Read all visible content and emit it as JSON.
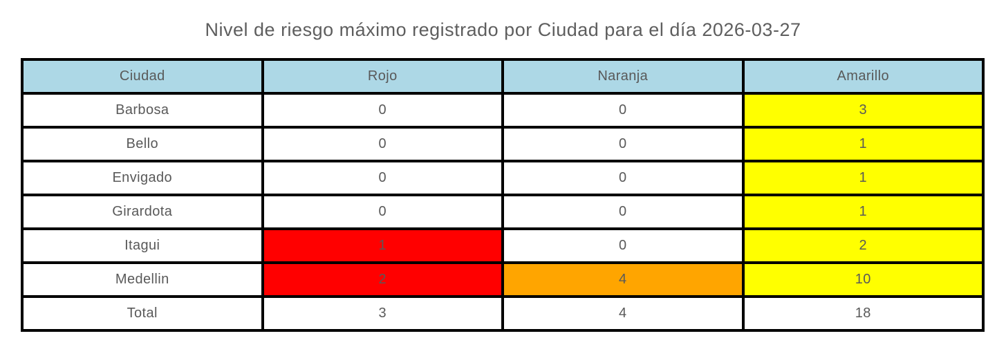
{
  "title": "Nivel de riesgo máximo registrado por Ciudad para el día 2026-03-27",
  "colors": {
    "header_bg": "#ADD8E6",
    "red": "#FF0000",
    "orange": "#FFA500",
    "yellow": "#FFFF00",
    "cell_bg": "#FFFFFF",
    "text": "#595959",
    "border": "#000000"
  },
  "table": {
    "columns": [
      "Ciudad",
      "Rojo",
      "Naranja",
      "Amarillo"
    ],
    "rows": [
      {
        "ciudad": "Barbosa",
        "values": [
          "0",
          "0",
          "3"
        ],
        "highlights": [
          null,
          null,
          "yellow"
        ]
      },
      {
        "ciudad": "Bello",
        "values": [
          "0",
          "0",
          "1"
        ],
        "highlights": [
          null,
          null,
          "yellow"
        ]
      },
      {
        "ciudad": "Envigado",
        "values": [
          "0",
          "0",
          "1"
        ],
        "highlights": [
          null,
          null,
          "yellow"
        ]
      },
      {
        "ciudad": "Girardota",
        "values": [
          "0",
          "0",
          "1"
        ],
        "highlights": [
          null,
          null,
          "yellow"
        ]
      },
      {
        "ciudad": "Itagui",
        "values": [
          "1",
          "0",
          "2"
        ],
        "highlights": [
          "red",
          null,
          "yellow"
        ]
      },
      {
        "ciudad": "Medellin",
        "values": [
          "2",
          "4",
          "10"
        ],
        "highlights": [
          "red",
          "orange",
          "yellow"
        ]
      },
      {
        "ciudad": "Total",
        "values": [
          "3",
          "4",
          "18"
        ],
        "highlights": [
          null,
          null,
          null
        ]
      }
    ]
  },
  "chart_data": {
    "type": "table",
    "title": "Nivel de riesgo máximo registrado por Ciudad para el día 2026-03-27",
    "categories": [
      "Barbosa",
      "Bello",
      "Envigado",
      "Girardota",
      "Itagui",
      "Medellin",
      "Total"
    ],
    "series": [
      {
        "name": "Rojo",
        "values": [
          0,
          0,
          0,
          0,
          1,
          2,
          3
        ]
      },
      {
        "name": "Naranja",
        "values": [
          0,
          0,
          0,
          0,
          0,
          4,
          4
        ]
      },
      {
        "name": "Amarillo",
        "values": [
          3,
          1,
          1,
          1,
          2,
          10,
          18
        ]
      }
    ]
  }
}
